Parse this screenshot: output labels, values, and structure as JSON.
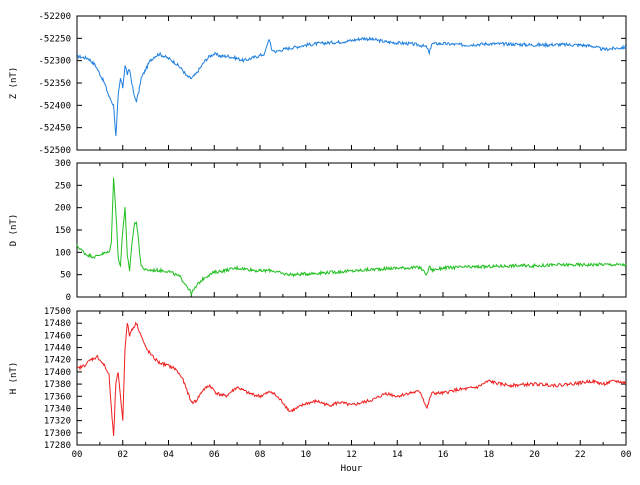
{
  "chart_data": [
    {
      "type": "line",
      "ylabel": "Z (nT)",
      "ylim": [
        -52500,
        -52200
      ],
      "yticks": [
        "-52200",
        "-52250",
        "-52300",
        "-52350",
        "-52400",
        "-52450",
        "-52500"
      ],
      "ytick_values": [
        -52200,
        -52250,
        -52300,
        -52350,
        -52400,
        -52450,
        -52500
      ],
      "xlim": [
        0,
        24
      ],
      "show_xtick_labels": false,
      "series": [
        {
          "color": "#1f7fdf",
          "x": [
            0,
            0.5,
            0.8,
            1.0,
            1.2,
            1.4,
            1.6,
            1.7,
            1.8,
            1.9,
            2.0,
            2.1,
            2.2,
            2.3,
            2.4,
            2.5,
            2.6,
            2.7,
            2.8,
            3.0,
            3.2,
            3.4,
            3.6,
            3.8,
            4.0,
            4.3,
            4.6,
            4.8,
            5.0,
            5.2,
            5.4,
            5.6,
            5.8,
            6.0,
            6.3,
            6.6,
            7.0,
            7.3,
            7.6,
            7.9,
            8.2,
            8.4,
            8.5,
            8.7,
            9.0,
            9.5,
            10,
            10.5,
            11,
            11.5,
            12,
            12.5,
            13,
            13.5,
            14,
            14.5,
            15,
            15.3,
            15.4,
            15.5,
            16,
            17,
            18,
            19,
            20,
            21,
            22,
            22.5,
            23,
            24
          ],
          "y": [
            -52290,
            -52295,
            -52310,
            -52330,
            -52350,
            -52380,
            -52400,
            -52470,
            -52380,
            -52340,
            -52360,
            -52310,
            -52330,
            -52320,
            -52350,
            -52380,
            -52390,
            -52370,
            -52340,
            -52320,
            -52300,
            -52290,
            -52285,
            -52290,
            -52295,
            -52305,
            -52320,
            -52335,
            -52340,
            -52330,
            -52315,
            -52300,
            -52290,
            -52285,
            -52290,
            -52290,
            -52295,
            -52300,
            -52295,
            -52290,
            -52285,
            -52250,
            -52275,
            -52280,
            -52275,
            -52270,
            -52265,
            -52262,
            -52260,
            -52258,
            -52255,
            -52250,
            -52253,
            -52258,
            -52260,
            -52262,
            -52265,
            -52270,
            -52285,
            -52262,
            -52262,
            -52265,
            -52262,
            -52263,
            -52265,
            -52264,
            -52265,
            -52267,
            -52275,
            -52270
          ]
        }
      ]
    },
    {
      "type": "line",
      "ylabel": "D (nT)",
      "ylim": [
        0,
        300
      ],
      "yticks": [
        "300",
        "250",
        "200",
        "150",
        "100",
        "50",
        "0"
      ],
      "ytick_values": [
        300,
        250,
        200,
        150,
        100,
        50,
        0
      ],
      "xlim": [
        0,
        24
      ],
      "show_xtick_labels": false,
      "series": [
        {
          "color": "#1fbf1f",
          "x": [
            0,
            0.2,
            0.4,
            0.6,
            0.8,
            1.0,
            1.2,
            1.4,
            1.5,
            1.6,
            1.7,
            1.8,
            1.9,
            2.0,
            2.1,
            2.2,
            2.3,
            2.4,
            2.5,
            2.6,
            2.7,
            2.8,
            3.0,
            3.5,
            4.0,
            4.5,
            4.8,
            5.0,
            5.1,
            5.3,
            5.6,
            6.0,
            6.5,
            7.0,
            7.5,
            8.0,
            8.5,
            9.0,
            9.5,
            10,
            11,
            12,
            13,
            14,
            15,
            15.3,
            15.4,
            15.5,
            16,
            17,
            18,
            19,
            20,
            21,
            22,
            23,
            24
          ],
          "y": [
            115,
            105,
            95,
            92,
            90,
            95,
            98,
            100,
            120,
            270,
            190,
            90,
            70,
            150,
            200,
            90,
            60,
            120,
            160,
            170,
            120,
            70,
            60,
            60,
            58,
            45,
            25,
            8,
            15,
            30,
            45,
            55,
            60,
            65,
            62,
            58,
            60,
            52,
            50,
            52,
            55,
            58,
            62,
            65,
            66,
            50,
            70,
            60,
            65,
            67,
            68,
            70,
            70,
            72,
            72,
            73,
            72
          ]
        }
      ]
    },
    {
      "type": "line",
      "xlabel": "Hour",
      "ylabel": "H (nT)",
      "ylim": [
        17280,
        17500
      ],
      "yticks": [
        "17500",
        "17480",
        "17460",
        "17440",
        "17420",
        "17400",
        "17380",
        "17360",
        "17340",
        "17320",
        "17300",
        "17280"
      ],
      "ytick_values": [
        17500,
        17480,
        17460,
        17440,
        17420,
        17400,
        17380,
        17360,
        17340,
        17320,
        17300,
        17280
      ],
      "xlim": [
        0,
        24
      ],
      "xticks": [
        "00",
        "02",
        "04",
        "06",
        "08",
        "10",
        "12",
        "14",
        "16",
        "18",
        "20",
        "22",
        "00"
      ],
      "xtick_values": [
        0,
        2,
        4,
        6,
        8,
        10,
        12,
        14,
        16,
        18,
        20,
        22,
        24
      ],
      "show_xtick_labels": true,
      "series": [
        {
          "color": "#ef1f1f",
          "x": [
            0,
            0.3,
            0.6,
            0.9,
            1.2,
            1.4,
            1.5,
            1.6,
            1.7,
            1.8,
            1.9,
            2.0,
            2.1,
            2.2,
            2.3,
            2.4,
            2.6,
            2.8,
            3.0,
            3.3,
            3.6,
            4.0,
            4.3,
            4.6,
            4.8,
            5.0,
            5.2,
            5.5,
            5.8,
            6.1,
            6.5,
            7.0,
            7.5,
            8.0,
            8.5,
            9.0,
            9.3,
            9.6,
            10,
            10.5,
            11,
            11.5,
            12,
            12.5,
            13,
            13.5,
            14,
            14.5,
            15,
            15.3,
            15.5,
            16,
            16.5,
            17,
            17.5,
            18,
            18.5,
            19,
            20,
            21,
            22,
            22.5,
            23,
            23.5,
            24
          ],
          "y": [
            17405,
            17410,
            17420,
            17425,
            17410,
            17395,
            17340,
            17295,
            17380,
            17400,
            17360,
            17320,
            17440,
            17480,
            17460,
            17470,
            17480,
            17460,
            17440,
            17425,
            17415,
            17410,
            17405,
            17390,
            17370,
            17350,
            17352,
            17370,
            17378,
            17365,
            17360,
            17375,
            17365,
            17360,
            17368,
            17350,
            17335,
            17340,
            17348,
            17352,
            17345,
            17350,
            17345,
            17350,
            17355,
            17365,
            17360,
            17365,
            17368,
            17340,
            17365,
            17365,
            17370,
            17372,
            17375,
            17385,
            17380,
            17378,
            17380,
            17378,
            17382,
            17385,
            17380,
            17385,
            17382
          ]
        }
      ]
    }
  ]
}
